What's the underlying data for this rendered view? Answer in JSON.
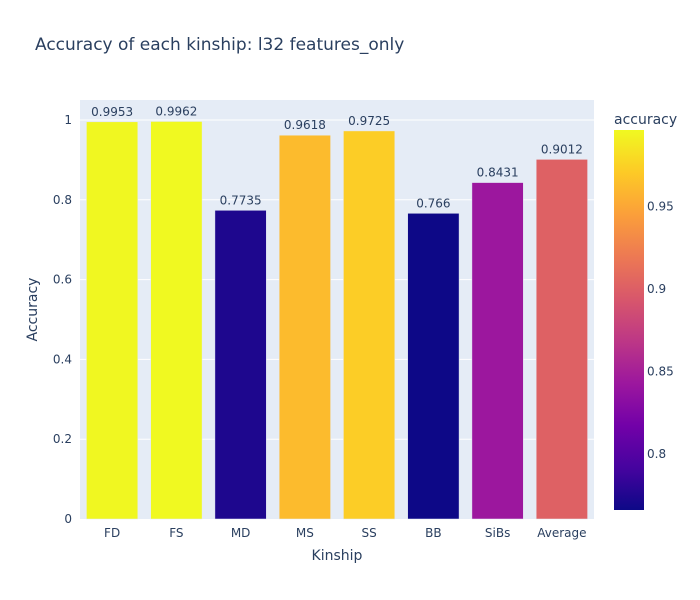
{
  "chart_data": {
    "type": "bar",
    "title": "Accuracy of each kinship: l32 features_only",
    "xlabel": "Kinship",
    "ylabel": "Accuracy",
    "categories": [
      "FD",
      "FS",
      "MD",
      "MS",
      "SS",
      "BB",
      "SiBs",
      "Average"
    ],
    "values": [
      0.9953,
      0.9962,
      0.7735,
      0.9618,
      0.9725,
      0.766,
      0.8431,
      0.9012
    ],
    "data_labels": [
      "0.9953",
      "0.9962",
      "0.7735",
      "0.9618",
      "0.9725",
      "0.766",
      "0.8431",
      "0.9012"
    ],
    "ylim": [
      0,
      1.05
    ],
    "yticks": [
      0,
      0.2,
      0.4,
      0.6,
      0.8,
      1
    ],
    "ytick_labels": [
      "0",
      "0.2",
      "0.4",
      "0.6",
      "0.8",
      "1"
    ],
    "grid": true,
    "colorbar": {
      "title": "accuracy",
      "range": [
        0.766,
        0.9962
      ],
      "ticks": [
        0.8,
        0.85,
        0.9,
        0.95
      ],
      "tick_labels": [
        "0.8",
        "0.85",
        "0.9",
        "0.95"
      ],
      "colorscale": [
        "#0d0887",
        "#46039f",
        "#7201a8",
        "#9c179e",
        "#bd3786",
        "#d8576b",
        "#ed7953",
        "#fb9f3a",
        "#fdca26",
        "#f0f921"
      ]
    },
    "colors": {
      "plot_bg": "#e5ecf6",
      "grid": "#ffffff",
      "text": "#2a3f5f"
    }
  }
}
